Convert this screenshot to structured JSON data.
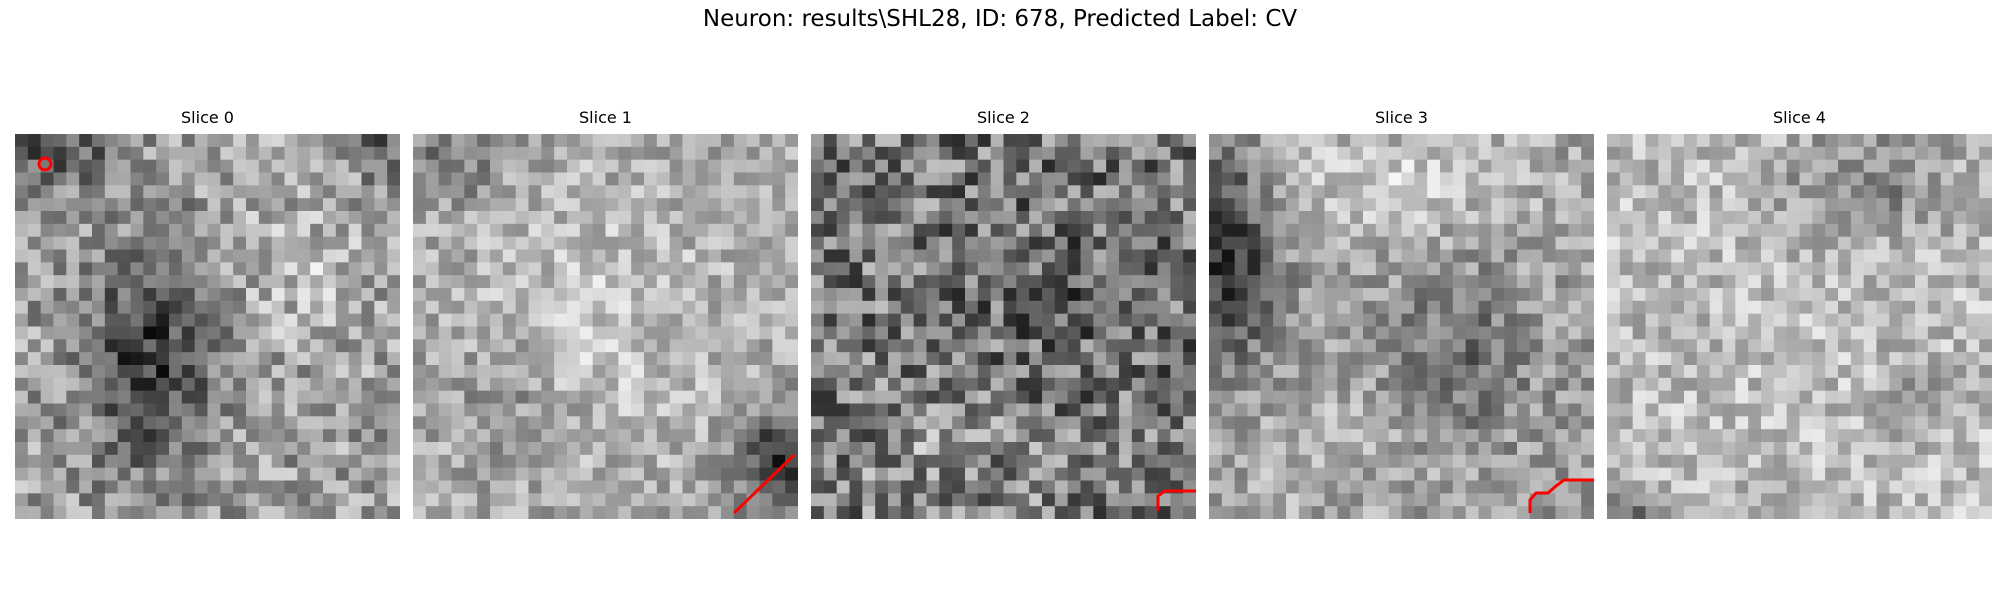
{
  "figure": {
    "title": "Neuron: results\\SHL28, ID: 678, Predicted Label: CV"
  },
  "colors": {
    "background": "#ffffff",
    "text": "#000000",
    "contour": "#ff0000",
    "colormap": "grayscale"
  },
  "panels": [
    {
      "title": "Slice 0"
    },
    {
      "title": "Slice 1"
    },
    {
      "title": "Slice 2"
    },
    {
      "title": "Slice 3"
    },
    {
      "title": "Slice 4"
    }
  ]
}
